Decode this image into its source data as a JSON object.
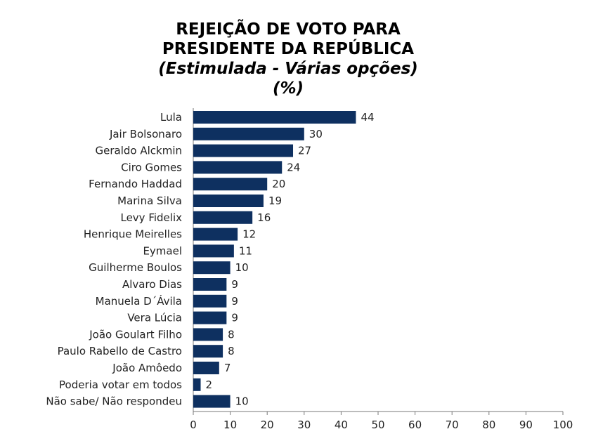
{
  "chart_data": {
    "type": "bar",
    "orientation": "horizontal",
    "title_lines": [
      "REJEIÇÃO DE VOTO PARA",
      "PRESIDENTE DA REPÚBLICA",
      "(Estimulada - Várias opções)",
      "(%)"
    ],
    "categories": [
      "Lula",
      "Jair Bolsonaro",
      "Geraldo Alckmin",
      "Ciro Gomes",
      "Fernando Haddad",
      "Marina Silva",
      "Levy Fidelix",
      "Henrique Meirelles",
      "Eymael",
      "Guilherme Boulos",
      "Alvaro Dias",
      "Manuela D´Ávila",
      "Vera Lúcia",
      "João Goulart Filho",
      "Paulo Rabello de Castro",
      "João Amôedo",
      "Poderia votar em todos",
      "Não sabe/ Não respondeu"
    ],
    "values": [
      44,
      30,
      27,
      24,
      20,
      19,
      16,
      12,
      11,
      10,
      9,
      9,
      9,
      8,
      8,
      7,
      2,
      10
    ],
    "xlim": [
      0,
      100
    ],
    "xticks": [
      "0",
      "10",
      "20",
      "30",
      "40",
      "50",
      "60",
      "70",
      "80",
      "90",
      "100"
    ],
    "bar_color": "#0e3060",
    "grid": false,
    "legend": "none"
  }
}
